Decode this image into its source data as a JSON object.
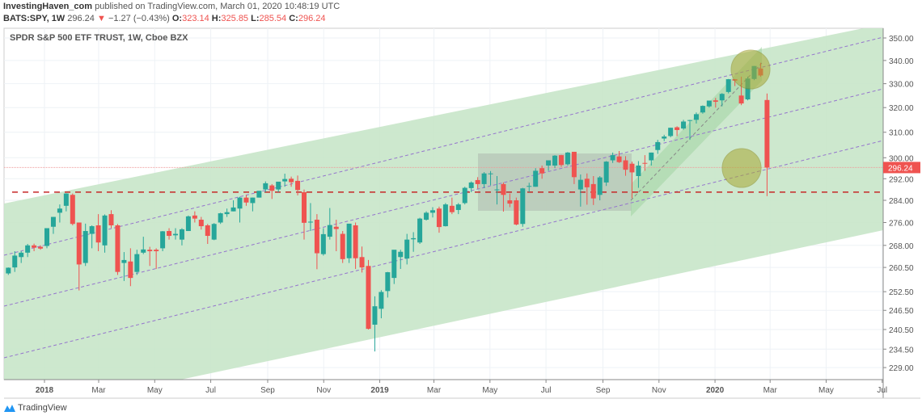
{
  "header": {
    "author": "InvestingHaven_com",
    "published": "published on TradingView.com, March 01, 2020 10:48:19 UTC",
    "symbol": "BATS:SPY, 1W",
    "last": "296.24",
    "change": "−1.27 (−0.43%)",
    "o_label": "O:",
    "o": "323.14",
    "h_label": "H:",
    "h": "325.85",
    "l_label": "L:",
    "l": "285.54",
    "c_label": "C:",
    "c": "296.24"
  },
  "legend": "SPDR S&P 500 ETF TRUST, 1W, Cboe BZX",
  "footer": {
    "brand": "TradingView"
  },
  "colors": {
    "up": "#26a69a",
    "down": "#ef5350",
    "channel": "#c8e6c9",
    "circle": "#a8a832"
  },
  "chart_data": {
    "type": "candlestick",
    "scale": "log",
    "ylim": [
      226,
      353
    ],
    "y_ticks": [
      "350.00",
      "340.00",
      "330.00",
      "320.00",
      "310.00",
      "300.00",
      "292.00",
      "284.00",
      "276.00",
      "268.00",
      "260.50",
      "252.50",
      "246.50",
      "240.50",
      "234.50",
      "229.00"
    ],
    "x_ticks": [
      {
        "label": "2018",
        "date": "2018-01-01",
        "bold": true
      },
      {
        "label": "Mar",
        "date": "2018-03-01"
      },
      {
        "label": "May",
        "date": "2018-05-01"
      },
      {
        "label": "Jul",
        "date": "2018-07-01"
      },
      {
        "label": "Sep",
        "date": "2018-09-01"
      },
      {
        "label": "Nov",
        "date": "2018-11-01"
      },
      {
        "label": "2019",
        "date": "2019-01-01",
        "bold": true
      },
      {
        "label": "Mar",
        "date": "2019-03-01"
      },
      {
        "label": "May",
        "date": "2019-05-01"
      },
      {
        "label": "Jul",
        "date": "2019-07-01"
      },
      {
        "label": "Sep",
        "date": "2019-09-01"
      },
      {
        "label": "Nov",
        "date": "2019-11-01"
      },
      {
        "label": "2020",
        "date": "2020-01-01",
        "bold": true
      },
      {
        "label": "Mar",
        "date": "2020-03-01"
      },
      {
        "label": "May",
        "date": "2020-05-01"
      },
      {
        "label": "Jul",
        "date": "2020-07-01"
      }
    ],
    "last_price_label": "296.24",
    "support_level": 287,
    "start_week": "2017-11-20",
    "ohlc": [
      [
        258.5,
        260.5,
        258,
        260.4
      ],
      [
        260.5,
        266,
        259,
        264.5
      ],
      [
        264,
        266,
        262,
        265.5
      ],
      [
        265.5,
        268.5,
        264,
        268
      ],
      [
        268,
        268.6,
        266,
        267.2
      ],
      [
        267.5,
        268,
        266.5,
        266.9
      ],
      [
        267.8,
        274,
        267,
        274
      ],
      [
        274.5,
        278,
        272,
        278
      ],
      [
        279.5,
        282.5,
        276,
        281
      ],
      [
        282,
        286.6,
        280,
        286.5
      ],
      [
        286,
        286.5,
        275,
        275.5
      ],
      [
        276,
        276,
        252.9,
        261.5
      ],
      [
        262,
        275.6,
        261,
        273
      ],
      [
        272,
        275,
        267,
        274.7
      ],
      [
        275,
        279,
        266,
        269
      ],
      [
        268,
        278.9,
        265.5,
        278.5
      ],
      [
        279,
        280.4,
        274,
        275
      ],
      [
        275,
        275.5,
        258,
        259
      ],
      [
        262,
        265.7,
        256,
        263
      ],
      [
        262.5,
        267,
        254.3,
        257
      ],
      [
        259,
        266.5,
        258,
        265
      ],
      [
        265.5,
        271,
        265,
        266.6
      ],
      [
        266.5,
        267.5,
        261,
        266
      ],
      [
        266.5,
        267,
        260,
        266
      ],
      [
        267,
        273,
        266,
        272.9
      ],
      [
        273,
        274,
        270,
        271.3
      ],
      [
        271.5,
        274,
        270,
        272
      ],
      [
        270,
        274,
        268,
        273.6
      ],
      [
        273,
        278.5,
        273,
        278.2
      ],
      [
        278.5,
        280,
        276,
        277.4
      ],
      [
        277,
        278,
        273.5,
        274.7
      ],
      [
        275,
        275.5,
        268.5,
        271.3
      ],
      [
        270,
        275.8,
        269.8,
        275.5
      ],
      [
        276,
        279.5,
        275.5,
        279.3
      ],
      [
        279,
        281,
        278,
        279.7
      ],
      [
        280,
        284,
        280,
        281.4
      ],
      [
        281,
        285.3,
        276,
        285
      ],
      [
        285,
        286,
        282,
        283.2
      ],
      [
        283,
        285,
        280,
        285
      ],
      [
        285,
        287.4,
        285,
        287.5
      ],
      [
        288,
        291,
        287,
        290.3
      ],
      [
        289.5,
        290,
        284.5,
        287.5
      ],
      [
        288,
        290.5,
        287,
        290.9
      ],
      [
        291,
        293.9,
        289,
        291.9
      ],
      [
        292,
        292.8,
        289,
        290.7
      ],
      [
        291.2,
        293.2,
        285.8,
        287.8
      ],
      [
        287,
        288,
        270,
        275.9
      ],
      [
        276,
        283,
        273,
        276.3
      ],
      [
        277,
        279,
        259.9,
        265.3
      ],
      [
        265,
        274,
        264.5,
        271.9
      ],
      [
        271,
        281.2,
        270,
        275.1
      ],
      [
        274.5,
        277,
        266,
        273.7
      ],
      [
        272,
        273,
        262,
        263.3
      ],
      [
        263.6,
        275.5,
        262,
        275.6
      ],
      [
        275,
        276,
        260,
        263.6
      ],
      [
        264,
        267.6,
        258.8,
        260.5
      ],
      [
        261,
        263,
        240.5,
        240.7
      ],
      [
        242,
        251,
        233.8,
        247.8
      ],
      [
        247,
        253,
        244,
        252.4
      ],
      [
        252.7,
        259,
        250.6,
        258.9
      ],
      [
        257,
        266,
        255,
        266.5
      ],
      [
        264,
        266.5,
        260,
        265.8
      ],
      [
        263.5,
        272,
        261.5,
        270
      ],
      [
        270.1,
        272.6,
        265.8,
        270.5
      ],
      [
        269,
        277.7,
        268.5,
        277.4
      ],
      [
        277,
        280,
        276.7,
        279.5
      ],
      [
        279.5,
        281.5,
        277.8,
        280.4
      ],
      [
        281,
        281.7,
        272.4,
        274.4
      ],
      [
        274.7,
        283,
        274.6,
        282.5
      ],
      [
        282,
        285,
        279,
        279.7
      ],
      [
        280.5,
        283,
        279,
        282.5
      ],
      [
        283,
        289,
        282.5,
        288.6
      ],
      [
        288.5,
        291,
        287,
        290.6
      ],
      [
        291.5,
        292.6,
        288.3,
        290
      ],
      [
        290,
        294.5,
        288.5,
        294
      ],
      [
        294,
        294.9,
        289.5,
        294
      ],
      [
        288,
        293,
        282.5,
        288
      ],
      [
        290,
        290.6,
        279.9,
        286
      ],
      [
        284,
        286.5,
        281.5,
        282.8
      ],
      [
        284,
        285,
        275,
        275.3
      ],
      [
        275.5,
        288.6,
        274.5,
        288.4
      ],
      [
        289,
        290.5,
        287,
        289.3
      ],
      [
        289,
        296,
        289,
        295
      ],
      [
        296,
        297,
        292,
        294
      ],
      [
        297,
        298.8,
        295,
        299
      ],
      [
        297,
        301,
        296,
        300.8
      ],
      [
        301,
        301.1,
        296.5,
        297.2
      ],
      [
        297.5,
        302.2,
        297,
        302
      ],
      [
        302.3,
        302.3,
        290,
        292.6
      ],
      [
        288,
        293.6,
        281.7,
        291.6
      ],
      [
        292,
        294,
        282.4,
        288.8
      ],
      [
        290,
        293,
        282.3,
        284.7
      ],
      [
        286,
        293,
        284,
        292.5
      ],
      [
        290.6,
        298.7,
        289.3,
        298.5
      ],
      [
        299,
        302,
        298,
        301
      ],
      [
        300.5,
        302.6,
        298,
        298.3
      ],
      [
        299,
        300.6,
        293.1,
        295.4
      ],
      [
        297.7,
        298.5,
        284.8,
        294.4
      ],
      [
        293,
        298.7,
        288.6,
        297
      ],
      [
        298,
        301,
        295,
        297.9
      ],
      [
        299,
        302,
        297,
        302
      ],
      [
        303,
        307,
        301.5,
        306.1
      ],
      [
        307.5,
        309,
        306.5,
        308.3
      ],
      [
        308.5,
        311.8,
        308,
        311.8
      ],
      [
        312,
        312.4,
        308.5,
        310.9
      ],
      [
        311.5,
        315,
        311,
        314.3
      ],
      [
        314.6,
        315,
        307,
        314.9
      ],
      [
        315,
        318,
        313.5,
        317.3
      ],
      [
        318,
        320.9,
        317.5,
        320.7
      ],
      [
        320.5,
        322.8,
        320,
        322.9
      ],
      [
        323,
        324,
        320,
        322.4
      ],
      [
        323,
        326,
        320.5,
        325.7
      ],
      [
        326.5,
        332,
        325.9,
        331.9
      ],
      [
        331.9,
        332,
        329,
        331.3
      ],
      [
        325,
        333,
        321,
        321.7
      ],
      [
        323.4,
        333,
        323,
        332.2
      ],
      [
        332,
        337.6,
        331.5,
        337.6
      ],
      [
        336.5,
        339,
        333,
        333.5
      ],
      [
        323.14,
        325.85,
        285.54,
        296.24
      ]
    ]
  }
}
